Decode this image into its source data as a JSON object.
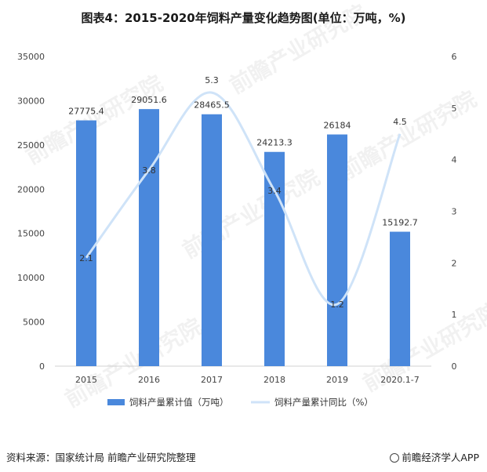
{
  "title": "图表4：2015-2020年饲料产量变化趋势图(单位：万吨，%)",
  "source": "资料来源：国家统计局 前瞻产业研究院整理",
  "brand": "前瞻经济学人APP",
  "watermark": "前瞻产业研究院",
  "colors": {
    "bar": "#4a88dc",
    "line": "#cfe3f8"
  },
  "chart_data": {
    "type": "bar",
    "categories": [
      "2015",
      "2016",
      "2017",
      "2018",
      "2019",
      "2020.1-7"
    ],
    "series": [
      {
        "name": "饲料产量累计值（万吨）",
        "type": "bar",
        "axis": "left",
        "values": [
          27775.4,
          29051.6,
          28465.5,
          24213.3,
          26184,
          15192.7
        ],
        "labels": [
          "27775.4",
          "29051.6",
          "28465.5",
          "24213.3",
          "26184",
          "15192.7"
        ]
      },
      {
        "name": "饲料产量累计同比（%）",
        "type": "line",
        "axis": "right",
        "smooth": true,
        "values": [
          2.1,
          3.8,
          5.3,
          3.4,
          1.2,
          4.5
        ],
        "labels": [
          "2.1",
          "3.8",
          "5.3",
          "3.4",
          "1.2",
          "4.5"
        ]
      }
    ],
    "y_left": {
      "ylim": [
        0,
        35000
      ],
      "ticks": [
        0,
        5000,
        10000,
        15000,
        20000,
        25000,
        30000,
        35000
      ]
    },
    "y_right": {
      "ylim": [
        0,
        6
      ],
      "ticks": [
        0,
        1,
        2,
        3,
        4,
        5,
        6
      ]
    },
    "grid": false,
    "legend": "bottom"
  }
}
